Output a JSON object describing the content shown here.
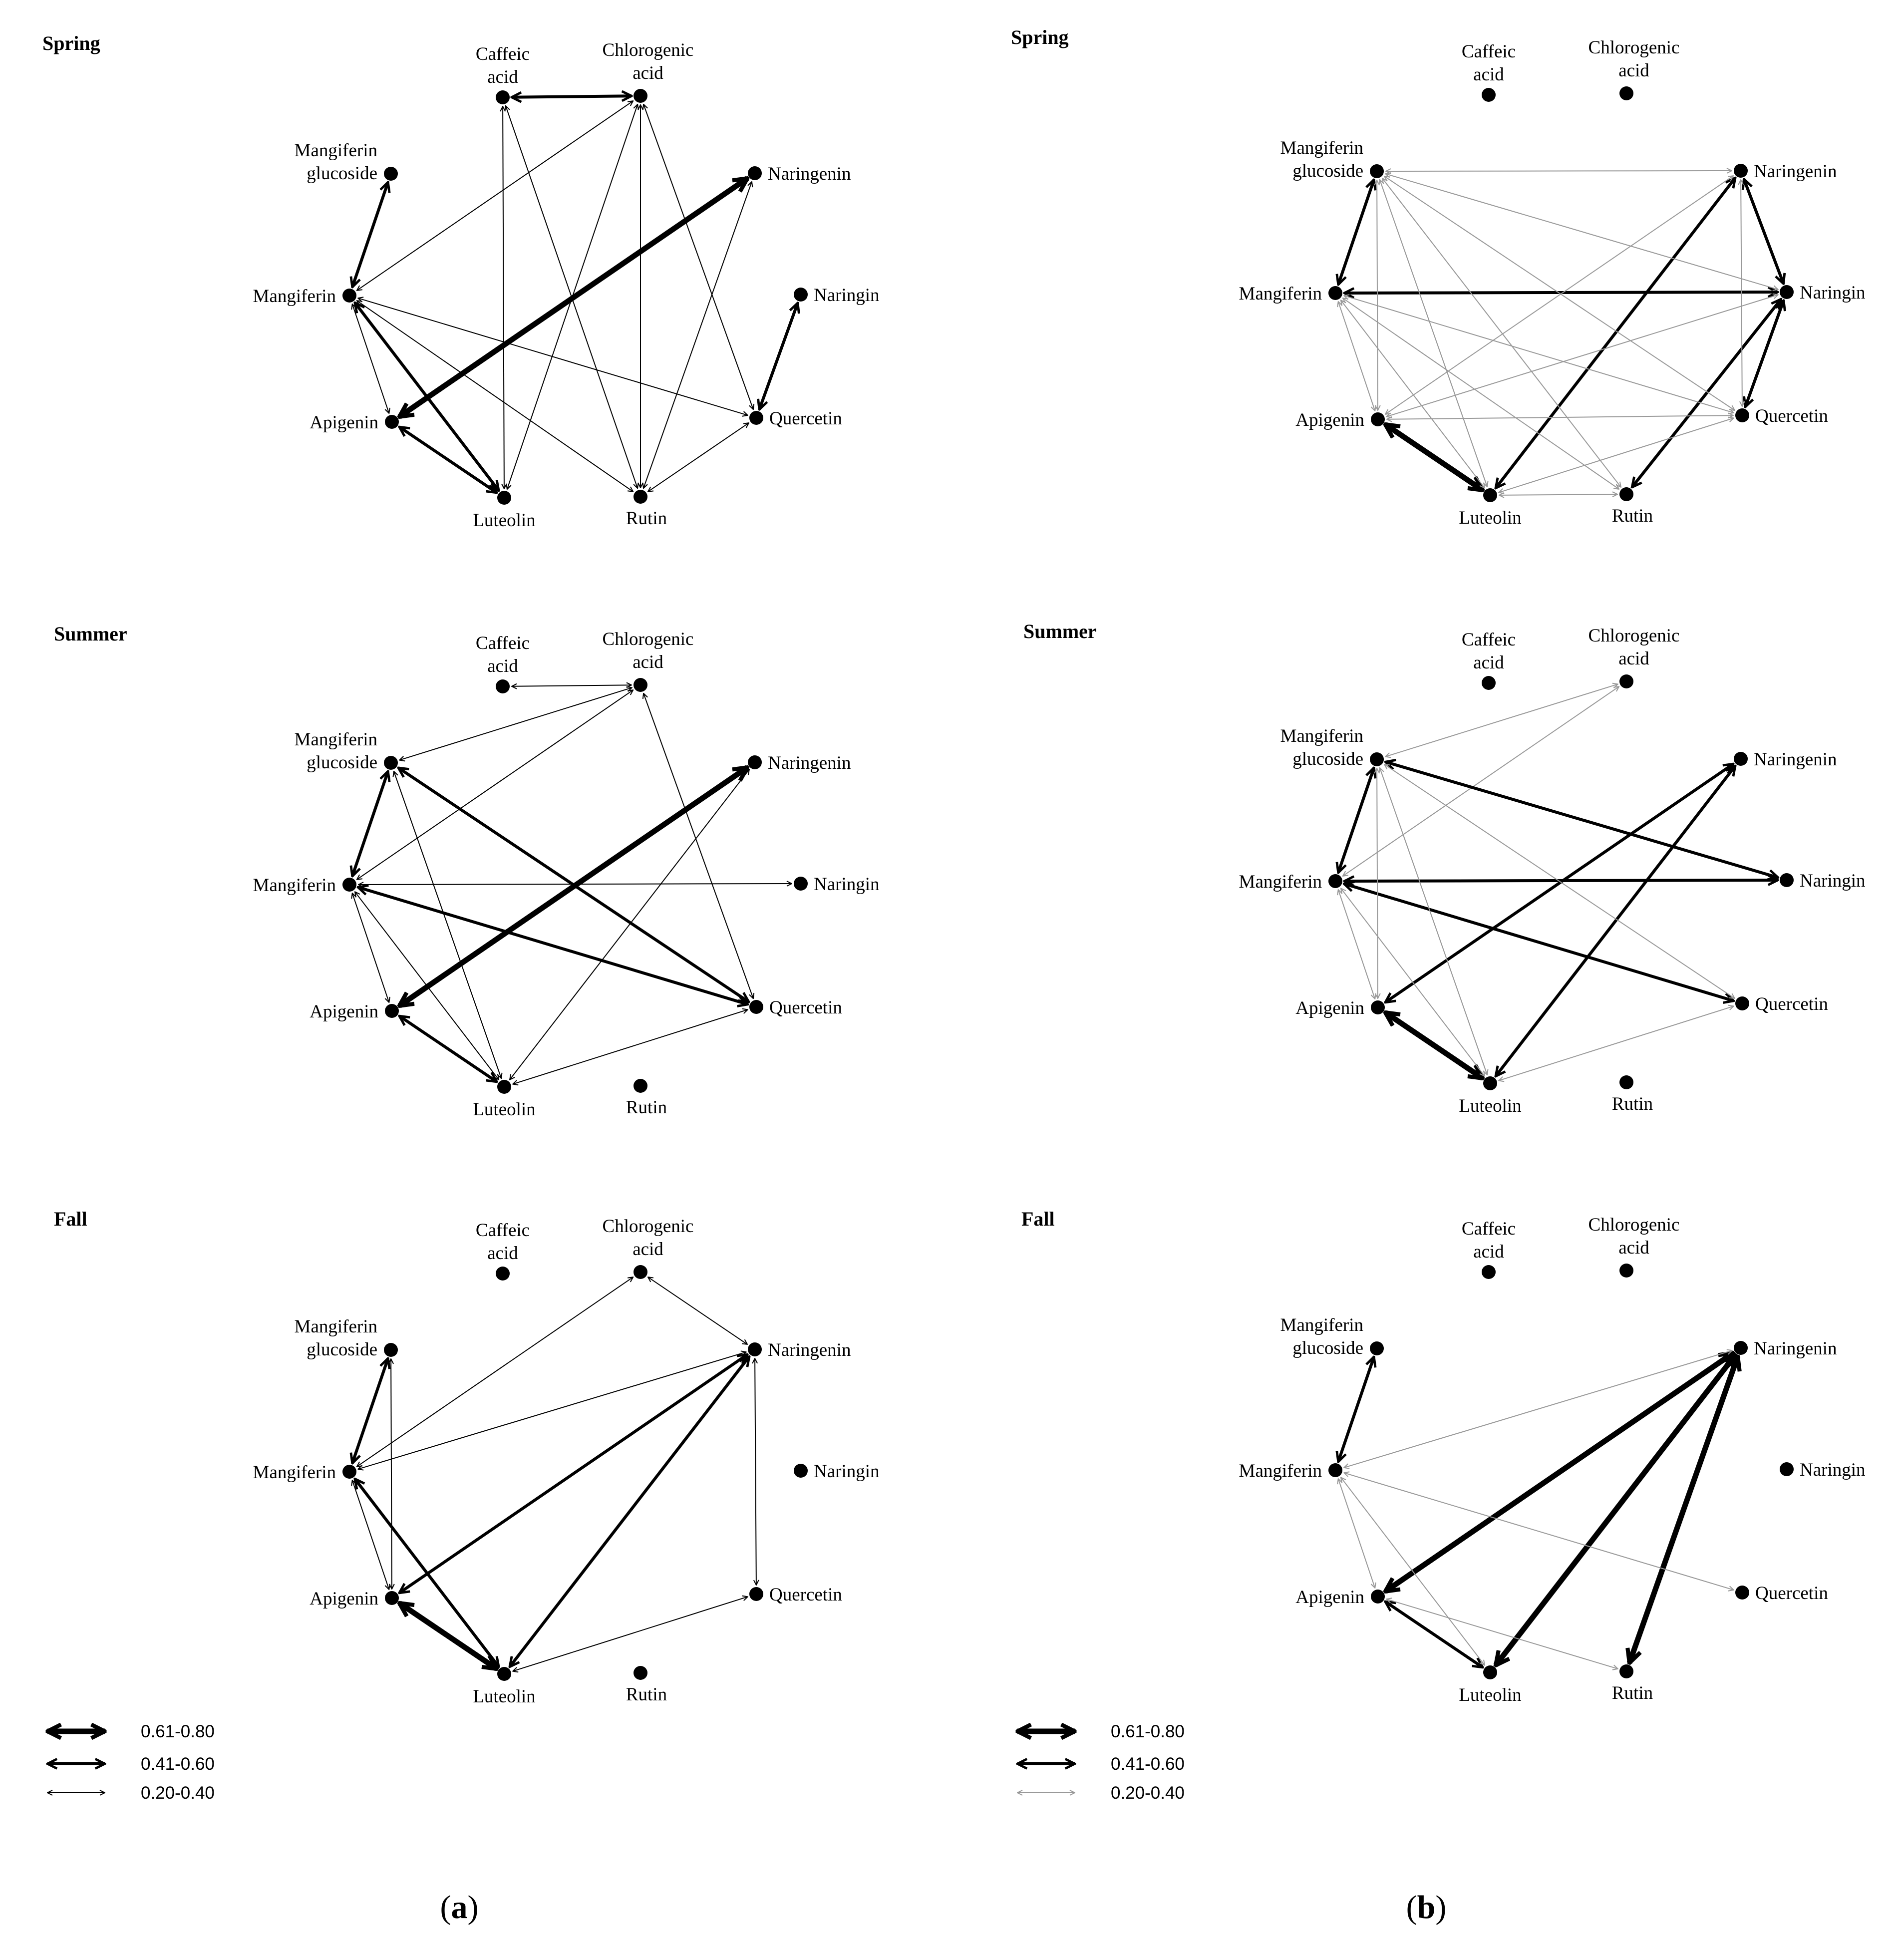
{
  "nodes": [
    {
      "id": "caffeic",
      "label": [
        "Caffeic",
        "acid"
      ]
    },
    {
      "id": "chlorogenic",
      "label": [
        "Chlorogenic",
        "acid"
      ]
    },
    {
      "id": "naringenin",
      "label": [
        "Naringenin"
      ]
    },
    {
      "id": "naringin",
      "label": [
        "Naringin"
      ]
    },
    {
      "id": "quercetin",
      "label": [
        "Quercetin"
      ]
    },
    {
      "id": "rutin",
      "label": [
        "Rutin"
      ]
    },
    {
      "id": "luteolin",
      "label": [
        "Luteolin"
      ]
    },
    {
      "id": "apigenin",
      "label": [
        "Apigenin"
      ]
    },
    {
      "id": "mangiferin",
      "label": [
        "Mangiferin"
      ]
    },
    {
      "id": "mangiferin_glucoside",
      "label": [
        "Mangiferin",
        "glucoside"
      ]
    }
  ],
  "legend": [
    {
      "label": "0.61-0.80",
      "level": 3
    },
    {
      "label": "0.41-0.60",
      "level": 2
    },
    {
      "label": "0.20-0.40",
      "level": 1
    }
  ],
  "legend_colors": {
    "a": [
      "#000000",
      "#000000",
      "#000000"
    ],
    "b": [
      "#000000",
      "#000000",
      "#999999"
    ]
  },
  "column_labels": {
    "a": {
      "open": "(",
      "letter": "a",
      "close": ")"
    },
    "b": {
      "open": "(",
      "letter": "b",
      "close": ")"
    }
  },
  "panels": [
    {
      "id": "a-spring",
      "title": "Spring",
      "edges": [
        [
          "caffeic",
          "chlorogenic",
          2
        ],
        [
          "mangiferin_glucoside",
          "mangiferin",
          2
        ],
        [
          "apigenin",
          "naringenin",
          3
        ],
        [
          "naringin",
          "quercetin",
          2
        ],
        [
          "mangiferin",
          "luteolin",
          2
        ],
        [
          "apigenin",
          "luteolin",
          2
        ],
        [
          "mangiferin",
          "apigenin",
          1
        ],
        [
          "mangiferin",
          "chlorogenic",
          1
        ],
        [
          "mangiferin",
          "quercetin",
          1
        ],
        [
          "mangiferin",
          "rutin",
          1
        ],
        [
          "caffeic",
          "luteolin",
          1
        ],
        [
          "caffeic",
          "rutin",
          1
        ],
        [
          "chlorogenic",
          "luteolin",
          1
        ],
        [
          "chlorogenic",
          "rutin",
          1
        ],
        [
          "chlorogenic",
          "quercetin",
          1
        ],
        [
          "naringenin",
          "rutin",
          1
        ],
        [
          "quercetin",
          "rutin",
          1
        ]
      ]
    },
    {
      "id": "a-summer",
      "title": "Summer",
      "edges": [
        [
          "caffeic",
          "chlorogenic",
          1
        ],
        [
          "mangiferin",
          "chlorogenic",
          1
        ],
        [
          "mangiferin_glucoside",
          "chlorogenic",
          1
        ],
        [
          "chlorogenic",
          "quercetin",
          1
        ],
        [
          "mangiferin_glucoside",
          "mangiferin",
          2
        ],
        [
          "mangiferin_glucoside",
          "quercetin",
          2
        ],
        [
          "mangiferin_glucoside",
          "luteolin",
          1
        ],
        [
          "mangiferin",
          "naringin",
          1
        ],
        [
          "mangiferin",
          "quercetin",
          2
        ],
        [
          "apigenin",
          "naringenin",
          3
        ],
        [
          "mangiferin",
          "apigenin",
          1
        ],
        [
          "mangiferin",
          "luteolin",
          1
        ],
        [
          "apigenin",
          "luteolin",
          2
        ],
        [
          "luteolin",
          "naringenin",
          1
        ],
        [
          "luteolin",
          "quercetin",
          1
        ]
      ]
    },
    {
      "id": "a-fall",
      "title": "Fall",
      "edges": [
        [
          "chlorogenic",
          "naringenin",
          1
        ],
        [
          "mangiferin",
          "chlorogenic",
          1
        ],
        [
          "mangiferin",
          "naringenin",
          1
        ],
        [
          "mangiferin_glucoside",
          "mangiferin",
          2
        ],
        [
          "mangiferin_glucoside",
          "apigenin",
          1
        ],
        [
          "mangiferin",
          "luteolin",
          2
        ],
        [
          "mangiferin",
          "apigenin",
          1
        ],
        [
          "apigenin",
          "naringenin",
          2
        ],
        [
          "luteolin",
          "naringenin",
          2
        ],
        [
          "apigenin",
          "luteolin",
          3
        ],
        [
          "naringenin",
          "quercetin",
          1
        ],
        [
          "luteolin",
          "quercetin",
          1
        ]
      ]
    },
    {
      "id": "b-spring",
      "title": "Spring",
      "edges": [
        [
          "mangiferin_glucoside",
          "mangiferin",
          2
        ],
        [
          "mangiferin",
          "naringin",
          2
        ],
        [
          "naringenin",
          "naringin",
          2
        ],
        [
          "naringin",
          "quercetin",
          2
        ],
        [
          "naringin",
          "rutin",
          2
        ],
        [
          "naringenin",
          "luteolin",
          2
        ],
        [
          "apigenin",
          "luteolin",
          3
        ],
        [
          "mangiferin_glucoside",
          "naringenin",
          1
        ],
        [
          "mangiferin_glucoside",
          "naringin",
          1
        ],
        [
          "mangiferin_glucoside",
          "quercetin",
          1
        ],
        [
          "mangiferin_glucoside",
          "rutin",
          1
        ],
        [
          "mangiferin_glucoside",
          "luteolin",
          1
        ],
        [
          "mangiferin_glucoside",
          "apigenin",
          1
        ],
        [
          "mangiferin",
          "quercetin",
          1
        ],
        [
          "mangiferin",
          "rutin",
          1
        ],
        [
          "mangiferin",
          "luteolin",
          1
        ],
        [
          "mangiferin",
          "apigenin",
          1
        ],
        [
          "apigenin",
          "naringenin",
          1
        ],
        [
          "apigenin",
          "naringin",
          1
        ],
        [
          "apigenin",
          "quercetin",
          1
        ],
        [
          "luteolin",
          "rutin",
          1
        ],
        [
          "luteolin",
          "quercetin",
          1
        ],
        [
          "naringenin",
          "quercetin",
          1
        ]
      ]
    },
    {
      "id": "b-summer",
      "title": "Summer",
      "edges": [
        [
          "mangiferin_glucoside",
          "chlorogenic",
          1
        ],
        [
          "mangiferin",
          "chlorogenic",
          1
        ],
        [
          "mangiferin_glucoside",
          "mangiferin",
          2
        ],
        [
          "mangiferin_glucoside",
          "naringin",
          2
        ],
        [
          "mangiferin",
          "naringin",
          2
        ],
        [
          "mangiferin",
          "quercetin",
          2
        ],
        [
          "apigenin",
          "naringenin",
          2
        ],
        [
          "luteolin",
          "naringenin",
          2
        ],
        [
          "apigenin",
          "luteolin",
          3
        ],
        [
          "mangiferin_glucoside",
          "quercetin",
          1
        ],
        [
          "mangiferin_glucoside",
          "luteolin",
          1
        ],
        [
          "mangiferin_glucoside",
          "apigenin",
          1
        ],
        [
          "mangiferin",
          "apigenin",
          1
        ],
        [
          "mangiferin",
          "luteolin",
          1
        ],
        [
          "luteolin",
          "quercetin",
          1
        ]
      ]
    },
    {
      "id": "b-fall",
      "title": "Fall",
      "edges": [
        [
          "mangiferin_glucoside",
          "mangiferin",
          2
        ],
        [
          "apigenin",
          "naringenin",
          3
        ],
        [
          "luteolin",
          "naringenin",
          3
        ],
        [
          "naringenin",
          "rutin",
          3
        ],
        [
          "apigenin",
          "luteolin",
          2
        ],
        [
          "mangiferin",
          "naringenin",
          1
        ],
        [
          "mangiferin",
          "quercetin",
          1
        ],
        [
          "mangiferin",
          "apigenin",
          1
        ],
        [
          "mangiferin",
          "luteolin",
          1
        ],
        [
          "apigenin",
          "rutin",
          1
        ]
      ]
    }
  ]
}
